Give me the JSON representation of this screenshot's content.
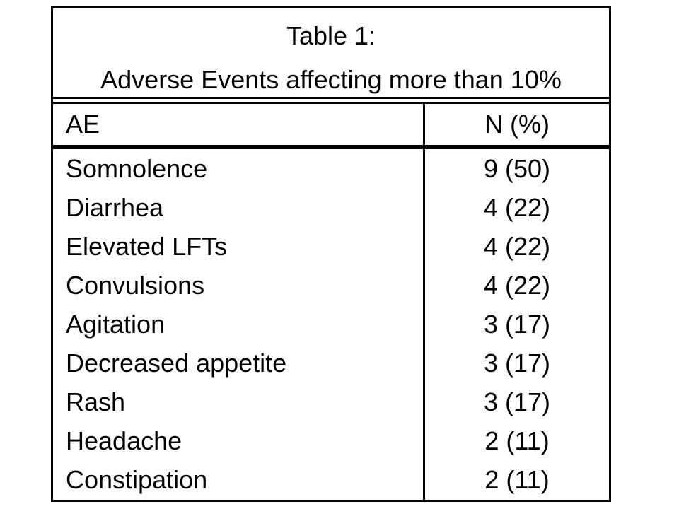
{
  "page": {
    "background_color": "#ffffff",
    "border_color": "#000000",
    "text_color": "#000000"
  },
  "table": {
    "title_line1": "Table 1:",
    "title_line2": "Adverse Events affecting more than 10%",
    "header": {
      "ae": "AE",
      "n": "N (%)"
    },
    "rows": [
      {
        "ae": "Somnolence",
        "n": "9 (50)"
      },
      {
        "ae": "Diarrhea",
        "n": "4 (22)"
      },
      {
        "ae": "Elevated LFTs",
        "n": "4 (22)"
      },
      {
        "ae": "Convulsions",
        "n": "4 (22)"
      },
      {
        "ae": "Agitation",
        "n": "3 (17)"
      },
      {
        "ae": "Decreased appetite",
        "n": "3 (17)"
      },
      {
        "ae": "Rash",
        "n": "3 (17)"
      },
      {
        "ae": "Headache",
        "n": "2 (11)"
      },
      {
        "ae": "Constipation",
        "n": "2 (11)"
      }
    ]
  },
  "chart_data": {
    "type": "table",
    "title": "Table 1: Adverse Events affecting more than 10%",
    "columns": [
      "AE",
      "N (%)"
    ],
    "categories": [
      "Somnolence",
      "Diarrhea",
      "Elevated LFTs",
      "Convulsions",
      "Agitation",
      "Decreased appetite",
      "Rash",
      "Headache",
      "Constipation"
    ],
    "series": [
      {
        "name": "N",
        "values": [
          9,
          4,
          4,
          4,
          3,
          3,
          3,
          2,
          2
        ]
      },
      {
        "name": "Percent",
        "values": [
          50,
          22,
          22,
          22,
          17,
          17,
          17,
          11,
          11
        ]
      }
    ],
    "cells": [
      [
        "Somnolence",
        "9 (50)"
      ],
      [
        "Diarrhea",
        "4 (22)"
      ],
      [
        "Elevated LFTs",
        "4 (22)"
      ],
      [
        "Convulsions",
        "4 (22)"
      ],
      [
        "Agitation",
        "3 (17)"
      ],
      [
        "Decreased appetite",
        "3 (17)"
      ],
      [
        "Rash",
        "3 (17)"
      ],
      [
        "Headache",
        "2 (11)"
      ],
      [
        "Constipation",
        "2 (11)"
      ]
    ],
    "layout": {
      "title_rule": "double",
      "header_rule": "thick-solid",
      "row_rules": "none",
      "column_divider": true
    }
  }
}
